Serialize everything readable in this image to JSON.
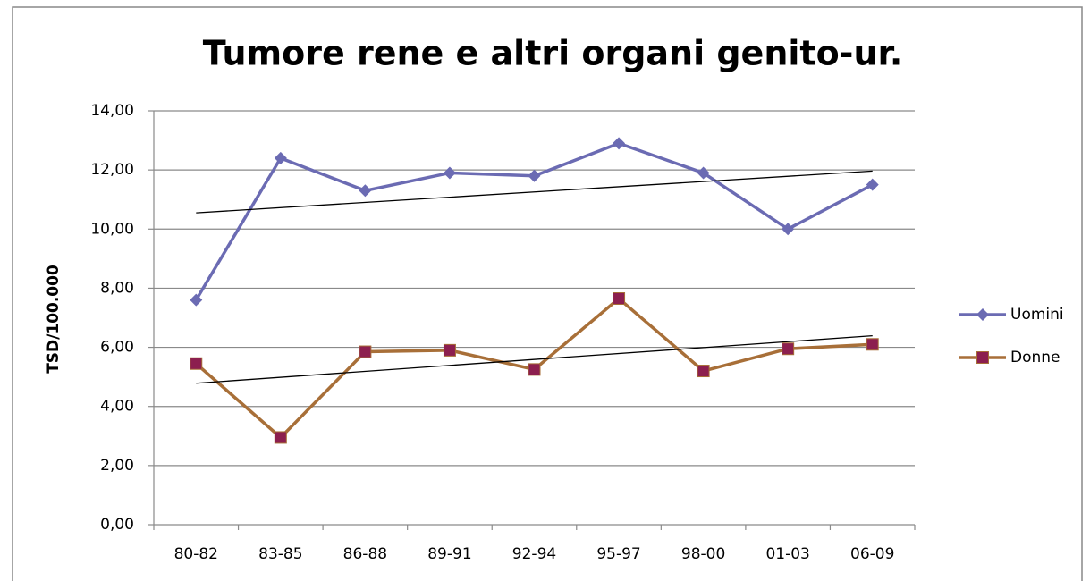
{
  "chart_data": {
    "type": "line",
    "title": "Tumore rene e altri organi genito-ur.",
    "y_label": "TSD/100.000",
    "categories": [
      "80-82",
      "83-85",
      "86-88",
      "89-91",
      "92-94",
      "95-97",
      "98-00",
      "01-03",
      "06-09"
    ],
    "series": [
      {
        "name": "Uomini",
        "color": "#6b6bb3",
        "marker_color": "#6b6bb3",
        "marker": "diamond",
        "values": [
          7.6,
          12.4,
          11.3,
          11.9,
          11.8,
          12.9,
          11.9,
          10.0,
          11.5
        ]
      },
      {
        "name": "Donne",
        "color": "#a86f38",
        "marker_color": "#8c1f4f",
        "marker": "square",
        "values": [
          5.45,
          2.95,
          5.85,
          5.9,
          5.25,
          7.65,
          5.2,
          5.95,
          6.1
        ]
      }
    ],
    "ylim": [
      0,
      14
    ],
    "yticks": [
      {
        "value": 0,
        "label": "0,00"
      },
      {
        "value": 2,
        "label": "2,00"
      },
      {
        "value": 4,
        "label": "4,00"
      },
      {
        "value": 6,
        "label": "6,00"
      },
      {
        "value": 8,
        "label": "8,00"
      },
      {
        "value": 10,
        "label": "10,00"
      },
      {
        "value": 12,
        "label": "12,00"
      },
      {
        "value": 14,
        "label": "14,00"
      }
    ],
    "grid": true,
    "trendline": true,
    "legend": "right"
  }
}
